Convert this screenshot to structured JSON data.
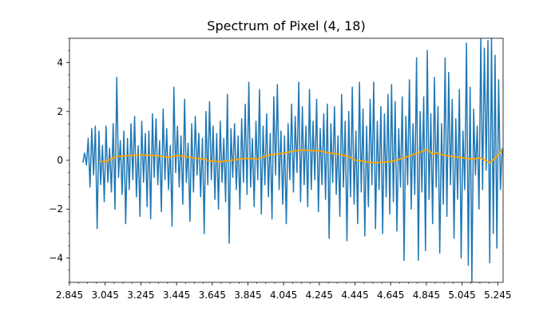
{
  "chart_data": {
    "type": "line",
    "title": "Spectrum of Pixel (4, 18)",
    "xlabel": "",
    "ylabel": "",
    "xlim": [
      2.845,
      5.275
    ],
    "ylim": [
      -5,
      5
    ],
    "x_ticks": [
      2.845,
      3.045,
      3.245,
      3.445,
      3.645,
      3.845,
      4.045,
      4.245,
      4.445,
      4.645,
      4.845,
      5.045,
      5.245
    ],
    "x_tick_labels": [
      "2.845",
      "3.045",
      "3.245",
      "3.445",
      "3.645",
      "3.845",
      "4.045",
      "4.245",
      "4.445",
      "4.645",
      "4.845",
      "5.045",
      "5.245"
    ],
    "y_ticks": [
      -4,
      -2,
      0,
      2,
      4
    ],
    "y_tick_labels": [
      "−4",
      "−2",
      "0",
      "2",
      "4"
    ],
    "y_minor_ticks": [
      -5,
      -4.5,
      -3.5,
      -3,
      -2.5,
      -1.5,
      -1,
      -0.5,
      0.5,
      1,
      1.5,
      2.5,
      3,
      3.5,
      4.5,
      5
    ],
    "grid": false,
    "legend": "none",
    "series": [
      {
        "color": "#1f77b4",
        "x": [
          2.92,
          2.93,
          2.94,
          2.95,
          2.96,
          2.97,
          2.98,
          2.99,
          3.0,
          3.01,
          3.02,
          3.03,
          3.04,
          3.05,
          3.06,
          3.07,
          3.08,
          3.09,
          3.1,
          3.11,
          3.12,
          3.13,
          3.14,
          3.15,
          3.16,
          3.17,
          3.18,
          3.19,
          3.2,
          3.21,
          3.22,
          3.23,
          3.24,
          3.25,
          3.26,
          3.27,
          3.28,
          3.29,
          3.3,
          3.31,
          3.32,
          3.33,
          3.34,
          3.35,
          3.36,
          3.37,
          3.38,
          3.39,
          3.4,
          3.41,
          3.42,
          3.43,
          3.44,
          3.45,
          3.46,
          3.47,
          3.48,
          3.49,
          3.5,
          3.51,
          3.52,
          3.53,
          3.54,
          3.55,
          3.56,
          3.57,
          3.58,
          3.59,
          3.6,
          3.61,
          3.62,
          3.63,
          3.64,
          3.65,
          3.66,
          3.67,
          3.68,
          3.69,
          3.7,
          3.71,
          3.72,
          3.73,
          3.74,
          3.75,
          3.76,
          3.77,
          3.78,
          3.79,
          3.8,
          3.81,
          3.82,
          3.83,
          3.84,
          3.85,
          3.86,
          3.87,
          3.88,
          3.89,
          3.9,
          3.91,
          3.92,
          3.93,
          3.94,
          3.95,
          3.96,
          3.97,
          3.98,
          3.99,
          4.0,
          4.01,
          4.02,
          4.03,
          4.04,
          4.05,
          4.06,
          4.07,
          4.08,
          4.09,
          4.1,
          4.11,
          4.12,
          4.13,
          4.14,
          4.15,
          4.16,
          4.17,
          4.18,
          4.19,
          4.2,
          4.21,
          4.22,
          4.23,
          4.24,
          4.25,
          4.26,
          4.27,
          4.28,
          4.29,
          4.3,
          4.31,
          4.32,
          4.33,
          4.34,
          4.35,
          4.36,
          4.37,
          4.38,
          4.39,
          4.4,
          4.41,
          4.42,
          4.43,
          4.44,
          4.45,
          4.46,
          4.47,
          4.48,
          4.49,
          4.5,
          4.51,
          4.52,
          4.53,
          4.54,
          4.55,
          4.56,
          4.57,
          4.58,
          4.59,
          4.6,
          4.61,
          4.62,
          4.63,
          4.64,
          4.65,
          4.66,
          4.67,
          4.68,
          4.69,
          4.7,
          4.71,
          4.72,
          4.73,
          4.74,
          4.75,
          4.76,
          4.77,
          4.78,
          4.79,
          4.8,
          4.81,
          4.82,
          4.83,
          4.84,
          4.85,
          4.86,
          4.87,
          4.88,
          4.89,
          4.9,
          4.91,
          4.92,
          4.93,
          4.94,
          4.95,
          4.96,
          4.97,
          4.98,
          4.99,
          5.0,
          5.01,
          5.02,
          5.03,
          5.04,
          5.05,
          5.06,
          5.07,
          5.08,
          5.09,
          5.1,
          5.11,
          5.12,
          5.13,
          5.14,
          5.15,
          5.16,
          5.17,
          5.18,
          5.19,
          5.2,
          5.21,
          5.22,
          5.23,
          5.24,
          5.25,
          5.26,
          5.27
        ],
        "y": [
          -0.1,
          0.3,
          -0.2,
          0.9,
          -1.1,
          1.3,
          -0.6,
          1.4,
          -2.8,
          1.2,
          -1.0,
          0.6,
          -1.7,
          1.4,
          -0.9,
          0.5,
          -1.3,
          1.5,
          -2.0,
          3.4,
          -0.7,
          0.8,
          -1.4,
          1.2,
          -2.6,
          0.9,
          -1.2,
          1.5,
          -0.8,
          1.8,
          -1.5,
          0.6,
          -2.3,
          1.6,
          -0.9,
          1.1,
          -1.9,
          1.2,
          -2.4,
          1.9,
          -0.7,
          1.7,
          -1.0,
          0.8,
          -2.1,
          2.1,
          -0.8,
          1.3,
          -1.2,
          0.6,
          -2.7,
          3.0,
          -0.5,
          1.4,
          -1.1,
          1.0,
          -1.8,
          2.5,
          -0.9,
          0.7,
          -2.5,
          1.5,
          -1.3,
          1.8,
          -0.6,
          1.1,
          -1.5,
          0.9,
          -3.0,
          2.0,
          -1.0,
          2.4,
          -0.8,
          1.4,
          -1.6,
          1.1,
          -2.0,
          1.6,
          -0.9,
          0.9,
          -1.7,
          2.7,
          -3.4,
          1.3,
          -0.7,
          1.5,
          -1.2,
          1.0,
          -2.0,
          1.7,
          -0.9,
          2.3,
          -1.4,
          3.2,
          -1.1,
          0.9,
          -1.9,
          1.6,
          -0.8,
          2.9,
          -2.2,
          1.4,
          -1.0,
          1.9,
          -1.5,
          1.1,
          -2.4,
          2.6,
          -0.6,
          3.1,
          -1.2,
          1.2,
          -1.8,
          1.0,
          -2.6,
          1.5,
          -0.8,
          2.3,
          -1.3,
          1.8,
          -0.5,
          3.2,
          -1.7,
          2.2,
          -1.0,
          1.4,
          -1.9,
          2.9,
          -1.2,
          1.6,
          -0.8,
          2.5,
          -2.1,
          1.3,
          -1.0,
          1.9,
          -1.6,
          2.3,
          -3.2,
          1.5,
          -0.9,
          2.2,
          -1.4,
          1.0,
          -2.3,
          2.7,
          -1.1,
          1.6,
          -3.3,
          2.0,
          -1.5,
          3.0,
          -1.8,
          1.2,
          -2.6,
          3.2,
          -1.3,
          2.1,
          -3.1,
          1.4,
          -1.9,
          2.5,
          -1.0,
          3.2,
          -2.8,
          1.6,
          -1.2,
          2.2,
          -3.0,
          1.9,
          -1.5,
          2.7,
          -2.2,
          3.1,
          -1.7,
          2.4,
          -2.9,
          1.3,
          -1.1,
          2.6,
          -4.1,
          1.8,
          -1.0,
          3.3,
          -2.0,
          1.5,
          -1.4,
          4.2,
          -4.1,
          2.0,
          -1.3,
          2.6,
          -3.7,
          4.5,
          -1.6,
          1.9,
          -2.6,
          3.4,
          -1.1,
          2.2,
          -3.8,
          1.5,
          -1.8,
          4.2,
          -2.3,
          3.6,
          -1.0,
          2.5,
          -3.2,
          1.7,
          -1.6,
          2.9,
          -4.0,
          1.2,
          -1.2,
          4.8,
          -4.3,
          3.0,
          -5.0,
          2.1,
          -0.6,
          1.4,
          -2.0,
          5.0,
          -1.2,
          4.6,
          -0.4,
          4.9,
          -4.2,
          5.0,
          -3.0,
          4.3,
          -3.6,
          3.3,
          -1.2,
          0.5
        ],
        "values": [
          -0.1,
          0.3,
          -0.2,
          0.9,
          -1.1,
          1.3,
          -0.6,
          1.4,
          -2.8,
          1.2,
          -1.0,
          0.6,
          -1.7,
          1.4,
          -0.9,
          0.5,
          -1.3,
          1.5,
          -2.0,
          3.4,
          -0.7,
          0.8,
          -1.4,
          1.2,
          -2.6,
          0.9,
          -1.2,
          1.5,
          -0.8,
          1.8,
          -1.5,
          0.6,
          -2.3,
          1.6,
          -0.9,
          1.1,
          -1.9,
          1.2,
          -2.4,
          1.9,
          -0.7,
          1.7,
          -1.0,
          0.8,
          -2.1,
          2.1,
          -0.8,
          1.3,
          -1.2,
          0.6,
          -2.7,
          3.0,
          -0.5,
          1.4,
          -1.1,
          1.0,
          -1.8,
          2.5,
          -0.9,
          0.7,
          -2.5,
          1.5,
          -1.3,
          1.8,
          -0.6,
          1.1,
          -1.5,
          0.9,
          -3.0,
          2.0,
          -1.0,
          2.4,
          -0.8,
          1.4,
          -1.6,
          1.1,
          -2.0,
          1.6,
          -0.9,
          0.9,
          -1.7,
          2.7,
          -3.4,
          1.3,
          -0.7,
          1.5,
          -1.2,
          1.0,
          -2.0,
          1.7,
          -0.9,
          2.3,
          -1.4,
          3.2,
          -1.1,
          0.9,
          -1.9,
          1.6,
          -0.8,
          2.9,
          -2.2,
          1.4,
          -1.0,
          1.9,
          -1.5,
          1.1,
          -2.4,
          2.6,
          -0.6,
          3.1,
          -1.2,
          1.2,
          -1.8,
          1.0,
          -2.6,
          1.5,
          -0.8,
          2.3,
          -1.3,
          1.8,
          -0.5,
          3.2,
          -1.7,
          2.2,
          -1.0,
          1.4,
          -1.9,
          2.9,
          -1.2,
          1.6,
          -0.8,
          2.5,
          -2.1,
          1.3,
          -1.0,
          1.9,
          -1.6,
          2.3,
          -3.2,
          1.5,
          -0.9,
          2.2,
          -1.4,
          1.0,
          -2.3,
          2.7,
          -1.1,
          1.6,
          -3.3,
          2.0,
          -1.5,
          3.0,
          -1.8,
          1.2,
          -2.6,
          3.2,
          -1.3,
          2.1,
          -3.1,
          1.4,
          -1.9,
          2.5,
          -1.0,
          3.2,
          -2.8,
          1.6,
          -1.2,
          2.2,
          -3.0,
          1.9,
          -1.5,
          2.7,
          -2.2,
          3.1,
          -1.7,
          2.4,
          -2.9,
          1.3,
          -1.1,
          2.6,
          -4.1,
          1.8,
          -1.0,
          3.3,
          -2.0,
          1.5,
          -1.4,
          4.2,
          -4.1,
          2.0,
          -1.3,
          2.6,
          -3.7,
          4.5,
          -1.6,
          1.9,
          -2.6,
          3.4,
          -1.1,
          2.2,
          -3.8,
          1.5,
          -1.8,
          4.2,
          -2.3,
          3.6,
          -1.0,
          2.5,
          -3.2,
          1.7,
          -1.6,
          2.9,
          -4.0,
          1.2,
          -1.2,
          4.8,
          -4.3,
          3.0,
          -5.0,
          2.1,
          -0.6,
          1.4,
          -2.0,
          5.0,
          -1.2,
          4.6,
          -0.4,
          4.9,
          -4.2,
          5.0,
          -3.0,
          4.3,
          -3.6,
          3.3,
          -1.2,
          0.5
        ]
      },
      {
        "color": "#ffa500",
        "x": [
          3.01,
          3.05,
          3.08,
          3.1,
          3.15,
          3.2,
          3.25,
          3.3,
          3.35,
          3.4,
          3.45,
          3.5,
          3.55,
          3.6,
          3.65,
          3.7,
          3.75,
          3.8,
          3.85,
          3.9,
          3.95,
          4.0,
          4.05,
          4.1,
          4.15,
          4.2,
          4.25,
          4.3,
          4.35,
          4.4,
          4.45,
          4.5,
          4.55,
          4.6,
          4.65,
          4.7,
          4.75,
          4.8,
          4.85,
          4.88,
          4.9,
          4.95,
          5.0,
          5.05,
          5.1,
          5.15,
          5.2,
          5.24,
          5.27
        ],
        "y": [
          -0.05,
          -0.05,
          0.05,
          0.15,
          0.18,
          0.2,
          0.22,
          0.2,
          0.18,
          0.12,
          0.2,
          0.15,
          0.08,
          0.05,
          -0.05,
          -0.05,
          0.0,
          0.05,
          0.08,
          0.05,
          0.2,
          0.25,
          0.3,
          0.38,
          0.42,
          0.4,
          0.38,
          0.3,
          0.25,
          0.18,
          0.0,
          -0.05,
          -0.1,
          -0.08,
          -0.05,
          0.05,
          0.18,
          0.3,
          0.45,
          0.25,
          0.3,
          0.2,
          0.15,
          0.1,
          0.05,
          0.1,
          -0.1,
          0.15,
          0.45
        ],
        "values": [
          -0.05,
          -0.05,
          0.05,
          0.15,
          0.18,
          0.2,
          0.22,
          0.2,
          0.18,
          0.12,
          0.2,
          0.15,
          0.08,
          0.05,
          -0.05,
          -0.05,
          0.0,
          0.05,
          0.08,
          0.05,
          0.2,
          0.25,
          0.3,
          0.38,
          0.42,
          0.4,
          0.38,
          0.3,
          0.25,
          0.18,
          0.0,
          -0.05,
          -0.1,
          -0.08,
          -0.05,
          0.05,
          0.18,
          0.3,
          0.45,
          0.25,
          0.3,
          0.2,
          0.15,
          0.1,
          0.05,
          0.1,
          -0.1,
          0.15,
          0.45
        ]
      }
    ]
  }
}
